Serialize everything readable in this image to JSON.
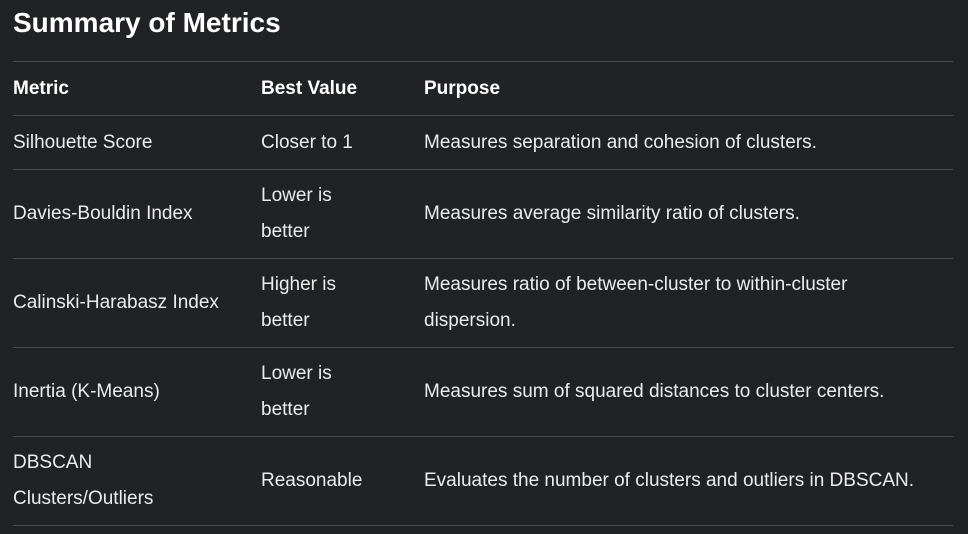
{
  "title": "Summary of Metrics",
  "table": {
    "headers": [
      "Metric",
      "Best Value",
      "Purpose"
    ],
    "rows": [
      {
        "metric": "Silhouette Score",
        "best": "Closer to 1",
        "purpose": "Measures separation and cohesion of clusters."
      },
      {
        "metric": "Davies-Bouldin Index",
        "best": "Lower is better",
        "purpose": "Measures average similarity ratio of clusters."
      },
      {
        "metric": "Calinski-Harabasz Index",
        "best": "Higher is better",
        "purpose": "Measures ratio of between-cluster to within-cluster dispersion."
      },
      {
        "metric": "Inertia (K-Means)",
        "best": "Lower is better",
        "purpose": "Measures sum of squared distances to cluster centers."
      },
      {
        "metric": "DBSCAN Clusters/Outliers",
        "best": "Reasonable",
        "purpose": "Evaluates the number of clusters and outliers in DBSCAN."
      }
    ]
  }
}
